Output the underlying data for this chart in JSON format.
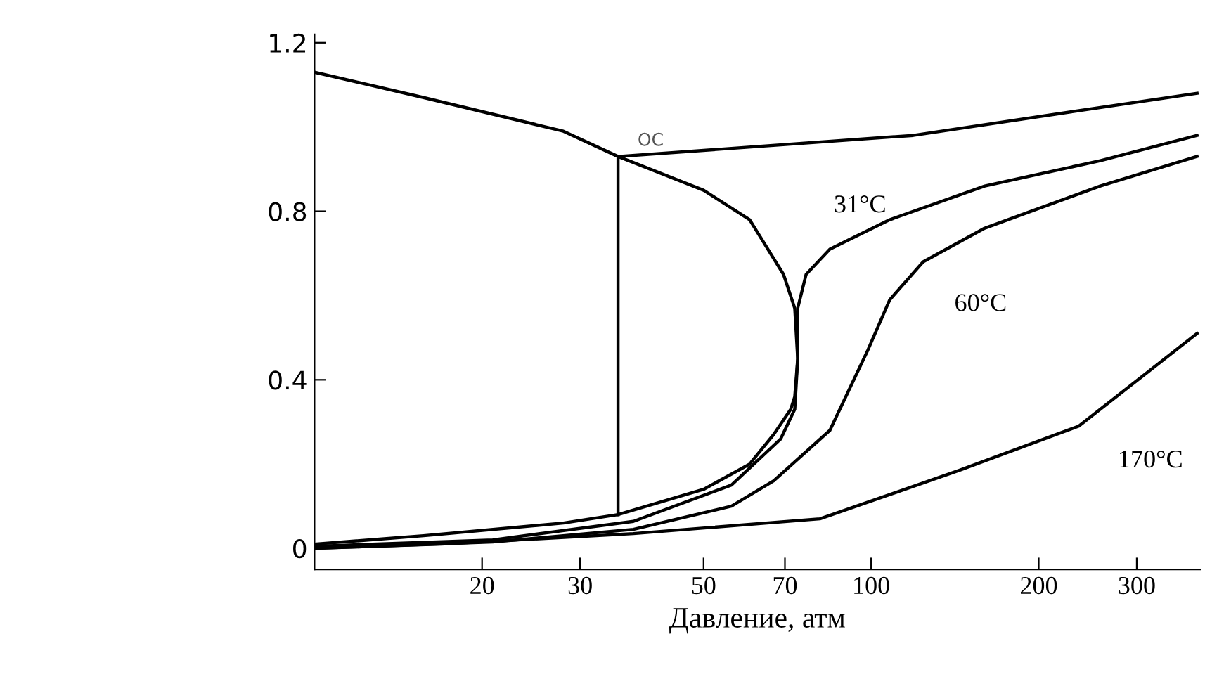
{
  "chart_data": {
    "type": "line",
    "xlabel": "Давление, атм",
    "log": "x",
    "xlim": [
      10,
      390
    ],
    "xticks": [
      20,
      30,
      50,
      70,
      100,
      200,
      300
    ],
    "ylim": [
      -0.05,
      1.22
    ],
    "yticks": [
      0,
      0.4,
      0.8,
      1.2
    ],
    "grid": false,
    "legend": false,
    "marker": "none",
    "line_style": "solid",
    "series": [
      {
        "color": "#000000",
        "x": [
          10,
          15.7,
          28,
          35.1,
          50,
          60.5,
          69.6,
          72.9,
          73.8,
          72.9,
          71.7,
          66.8,
          60.5,
          50,
          35.1,
          28,
          15.7,
          10
        ],
        "values": [
          1.13,
          1.07,
          0.99,
          0.93,
          0.85,
          0.78,
          0.65,
          0.57,
          0.45,
          0.36,
          0.33,
          0.27,
          0.2,
          0.14,
          0.08,
          0.06,
          0.03,
          0.01
        ]
      },
      {
        "color": "#000000",
        "x": [
          35.1,
          35.1
        ],
        "values": [
          0.08,
          0.93
        ]
      },
      {
        "name": "OC",
        "color": "#000000",
        "x": [
          35.1,
          119,
          213,
          385
        ],
        "values": [
          0.93,
          0.98,
          1.03,
          1.08
        ]
      },
      {
        "name": "31°C",
        "color": "#000000",
        "x": [
          10,
          20.9,
          37.4,
          56.1,
          68.8,
          72.9,
          73.8,
          73.8,
          76.4,
          84.3,
          108,
          160,
          258,
          385
        ],
        "values": [
          0.005,
          0.02,
          0.064,
          0.15,
          0.26,
          0.33,
          0.45,
          0.57,
          0.65,
          0.71,
          0.78,
          0.86,
          0.92,
          0.98
        ]
      },
      {
        "name": "60°C",
        "color": "#000000",
        "x": [
          10,
          20.9,
          37.4,
          56.1,
          66.8,
          84.3,
          98.6,
          108,
          124,
          160,
          258,
          385
        ],
        "values": [
          0.0,
          0.015,
          0.045,
          0.1,
          0.16,
          0.28,
          0.47,
          0.59,
          0.68,
          0.76,
          0.86,
          0.93
        ]
      },
      {
        "name": "170°C",
        "color": "#000000",
        "x": [
          10,
          16.9,
          37.4,
          80.9,
          144,
          236,
          385
        ],
        "values": [
          0.0,
          0.01,
          0.035,
          0.07,
          0.185,
          0.29,
          0.51
        ]
      }
    ]
  }
}
